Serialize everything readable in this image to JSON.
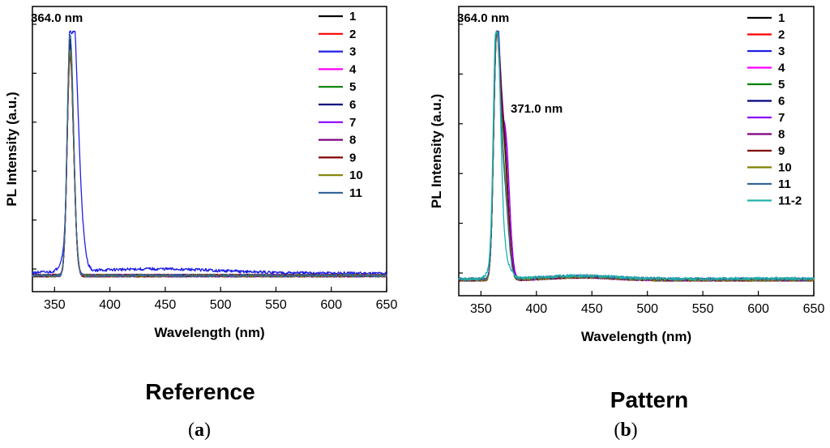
{
  "chart_data": [
    {
      "type": "line",
      "subtitle": "Reference",
      "panel_label": "a",
      "xlabel": "Wavelength (nm)",
      "ylabel": "PL Intensity (a.u.)",
      "xlim": [
        330,
        650
      ],
      "ylim": [
        0,
        1
      ],
      "xticks": [
        350,
        400,
        450,
        500,
        550,
        600,
        650
      ],
      "grid": false,
      "legend": "top-right",
      "annotations": [
        {
          "text": "364.0 nm",
          "x": 364
        }
      ],
      "series": [
        {
          "name": "1",
          "color": "#000000",
          "peak_x": 364.0,
          "peak": 0.97,
          "baseline": 0.006
        },
        {
          "name": "2",
          "color": "#ff0000",
          "peak_x": 364.0,
          "peak": 0.9,
          "baseline": 0.006
        },
        {
          "name": "3",
          "color": "#1f1fe6",
          "peak_x": 365.0,
          "peak": 1.0,
          "baseline": 0.015,
          "shoulder_x": 366,
          "shoulder": 0.75
        },
        {
          "name": "4",
          "color": "#ff00ff",
          "peak_x": 364.0,
          "peak": 0.94,
          "baseline": 0.006
        },
        {
          "name": "5",
          "color": "#008000",
          "peak_x": 364.0,
          "peak": 0.93,
          "baseline": 0.006
        },
        {
          "name": "6",
          "color": "#000080",
          "peak_x": 364.0,
          "peak": 0.95,
          "baseline": 0.006
        },
        {
          "name": "7",
          "color": "#8b00ff",
          "peak_x": 364.0,
          "peak": 0.92,
          "baseline": 0.006
        },
        {
          "name": "8",
          "color": "#800080",
          "peak_x": 364.0,
          "peak": 0.91,
          "baseline": 0.006
        },
        {
          "name": "9",
          "color": "#800000",
          "peak_x": 364.0,
          "peak": 0.9,
          "baseline": 0.006
        },
        {
          "name": "10",
          "color": "#808000",
          "peak_x": 364.0,
          "peak": 0.92,
          "baseline": 0.006
        },
        {
          "name": "11",
          "color": "#336699",
          "peak_x": 364.0,
          "peak": 0.99,
          "baseline": 0.006
        }
      ]
    },
    {
      "type": "line",
      "subtitle": "Pattern",
      "panel_label": "b",
      "xlabel": "Wavelength (nm)",
      "ylabel": "PL Intensity (a.u.)",
      "xlim": [
        330,
        650
      ],
      "ylim": [
        0,
        1
      ],
      "xticks": [
        350,
        400,
        450,
        500,
        550,
        600,
        650
      ],
      "grid": false,
      "legend": "top-right",
      "annotations": [
        {
          "text": "364.0 nm",
          "x": 364
        },
        {
          "text": "371.0 nm",
          "x": 371
        }
      ],
      "series": [
        {
          "name": "1",
          "color": "#000000",
          "peak_x": 364.0,
          "peak": 0.95,
          "peak2_x": 371,
          "peak2": 0.6,
          "baseline": 0.005
        },
        {
          "name": "2",
          "color": "#ff0000",
          "peak_x": 364.0,
          "peak": 0.93,
          "peak2_x": 371,
          "peak2": 0.58,
          "baseline": 0.005
        },
        {
          "name": "3",
          "color": "#1f1fe6",
          "peak_x": 364.0,
          "peak": 0.96,
          "peak2_x": 371,
          "peak2": 0.62,
          "baseline": 0.008
        },
        {
          "name": "4",
          "color": "#ff00ff",
          "peak_x": 364.0,
          "peak": 0.94,
          "peak2_x": 372,
          "peak2": 0.66,
          "baseline": 0.005
        },
        {
          "name": "5",
          "color": "#008000",
          "peak_x": 364.0,
          "peak": 0.93,
          "peak2_x": 371,
          "peak2": 0.55,
          "baseline": 0.005
        },
        {
          "name": "6",
          "color": "#000080",
          "peak_x": 364.0,
          "peak": 0.95,
          "peak2_x": 371,
          "peak2": 0.58,
          "baseline": 0.005
        },
        {
          "name": "7",
          "color": "#8b00ff",
          "peak_x": 364.0,
          "peak": 0.94,
          "peak2_x": 372,
          "peak2": 0.67,
          "baseline": 0.005
        },
        {
          "name": "8",
          "color": "#800080",
          "peak_x": 364.0,
          "peak": 0.93,
          "peak2_x": 371,
          "peak2": 0.62,
          "baseline": 0.005
        },
        {
          "name": "9",
          "color": "#800000",
          "peak_x": 364.0,
          "peak": 0.92,
          "peak2_x": 371,
          "peak2": 0.6,
          "baseline": 0.005
        },
        {
          "name": "10",
          "color": "#808000",
          "peak_x": 364.0,
          "peak": 0.93,
          "peak2_x": 371,
          "peak2": 0.45,
          "baseline": 0.005
        },
        {
          "name": "11",
          "color": "#336699",
          "peak_x": 364.0,
          "peak": 0.96,
          "peak2_x": 371,
          "peak2": 0.4,
          "baseline": 0.008
        },
        {
          "name": "11-2",
          "color": "#20b2aa",
          "peak_x": 364.0,
          "peak": 1.0,
          "baseline": 0.01,
          "shoulder_x": 367,
          "shoulder": 0.55
        }
      ]
    }
  ]
}
